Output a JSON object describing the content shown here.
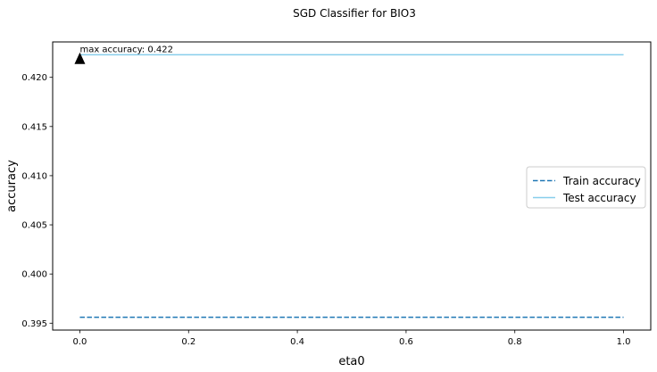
{
  "chart_data": {
    "type": "line",
    "title": "SGD Classifier for BIO3",
    "xlabel": "eta0",
    "ylabel": "accuracy",
    "xlim": [
      -0.05,
      1.05
    ],
    "ylim": [
      0.3943,
      0.4236
    ],
    "x_ticks": [
      0.0,
      0.2,
      0.4,
      0.6,
      0.8,
      1.0
    ],
    "x_tick_labels": [
      "0.0",
      "0.2",
      "0.4",
      "0.6",
      "0.8",
      "1.0"
    ],
    "y_ticks": [
      0.395,
      0.4,
      0.405,
      0.41,
      0.415,
      0.42
    ],
    "y_tick_labels": [
      "0.395",
      "0.400",
      "0.405",
      "0.410",
      "0.415",
      "0.420"
    ],
    "grid": false,
    "legend_position": "center-right",
    "series": [
      {
        "name": "Train accuracy",
        "color": "#1f77b4",
        "style": "dashed",
        "x": [
          0.0,
          0.1,
          0.2,
          0.3,
          0.4,
          0.5,
          0.6,
          0.7,
          0.8,
          0.9,
          1.0
        ],
        "y": [
          0.3956,
          0.3956,
          0.3956,
          0.3956,
          0.3956,
          0.3956,
          0.3956,
          0.3956,
          0.3956,
          0.3956,
          0.3956
        ]
      },
      {
        "name": "Test accuracy",
        "color": "#87ceeb",
        "style": "solid",
        "x": [
          0.0,
          0.1,
          0.2,
          0.3,
          0.4,
          0.5,
          0.6,
          0.7,
          0.8,
          0.9,
          1.0
        ],
        "y": [
          0.4223,
          0.4223,
          0.4223,
          0.4223,
          0.4223,
          0.4223,
          0.4223,
          0.4223,
          0.4223,
          0.4223,
          0.4223
        ]
      }
    ],
    "annotation": {
      "text": "max accuracy: 0.422",
      "x": 0.0,
      "y": 0.4219,
      "marker": "triangle",
      "marker_color": "#000000"
    }
  }
}
